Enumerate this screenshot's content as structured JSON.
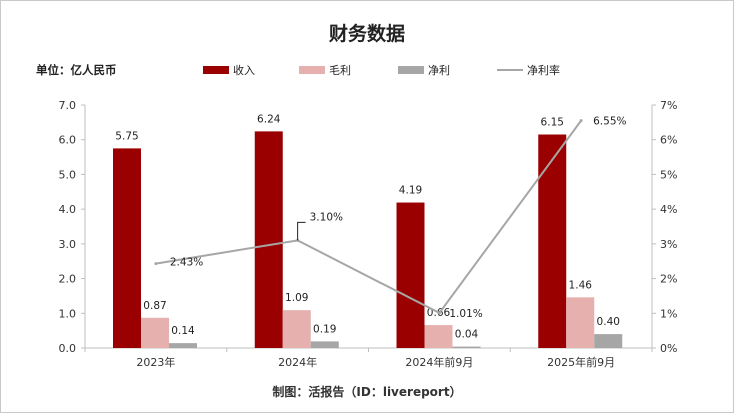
{
  "title": "财务数据",
  "unit_label": "单位：亿人民币",
  "footer": "制图：活报告（ID：livereport）",
  "colors": {
    "revenue": "#9b0000",
    "gross_profit": "#e6b0ae",
    "net_profit": "#a6a6a6",
    "net_margin": "#a6a6a6"
  },
  "chart_data": {
    "type": "bar",
    "categories": [
      "2023年",
      "2024年",
      "2024年前9月",
      "2025年前9月"
    ],
    "series": [
      {
        "name": "收入",
        "type": "bar",
        "axis": "left",
        "values": [
          5.75,
          6.24,
          4.19,
          6.15
        ],
        "labels": [
          "5.75",
          "6.24",
          "4.19",
          "6.15"
        ]
      },
      {
        "name": "毛利",
        "type": "bar",
        "axis": "left",
        "values": [
          0.87,
          1.09,
          0.66,
          1.46
        ],
        "labels": [
          "0.87",
          "1.09",
          "0.66",
          "1.46"
        ]
      },
      {
        "name": "净利",
        "type": "bar",
        "axis": "left",
        "values": [
          0.14,
          0.19,
          0.04,
          0.4
        ],
        "labels": [
          "0.14",
          "0.19",
          "0.04",
          "0.40"
        ]
      },
      {
        "name": "净利率",
        "type": "line",
        "axis": "right",
        "values": [
          2.43,
          3.1,
          1.01,
          6.55
        ],
        "labels": [
          "2.43%",
          "3.10%",
          "1.01%",
          "6.55%"
        ]
      }
    ],
    "y_left": {
      "range": [
        0,
        7
      ],
      "ticks": [
        "0.0",
        "1.0",
        "2.0",
        "3.0",
        "4.0",
        "5.0",
        "6.0",
        "7.0"
      ]
    },
    "y_right": {
      "range": [
        0,
        7
      ],
      "ticks": [
        "0%",
        "1%",
        "2%",
        "3%",
        "4%",
        "5%",
        "6%",
        "7%"
      ]
    },
    "legend_position": "top",
    "grid": false
  }
}
